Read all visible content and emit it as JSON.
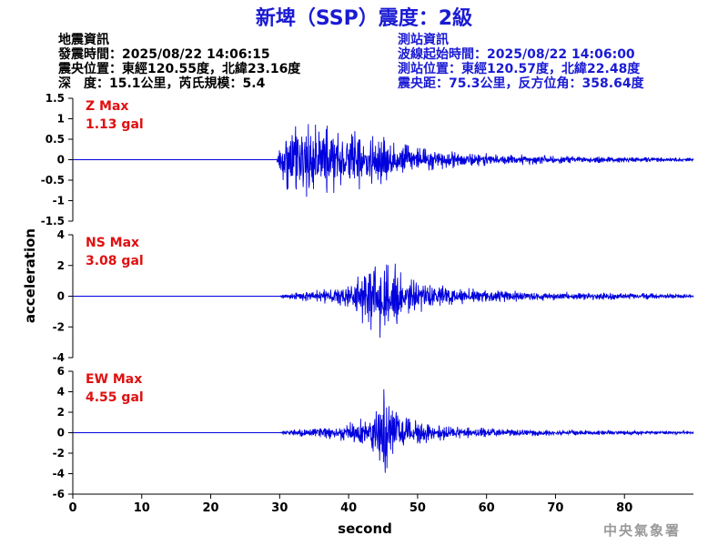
{
  "title": "新埤（SSP）震度：2級",
  "event_info": {
    "heading": "地震資訊",
    "origin_time": "發震時間：2025/08/22 14:06:15",
    "epicenter": "震央位置：東經120.55度，北緯23.16度",
    "depth_magnitude": "深　度：15.1公里，芮氏規模：5.4"
  },
  "station_info": {
    "heading": "測站資訊",
    "wave_start": "波線起始時間：2025/08/22 14:06:00",
    "location": "測站位置：東經120.57度，北緯22.48度",
    "distance": "震央距：75.3公里，反方位角：358.64度"
  },
  "credit": "中央氣象署",
  "colors": {
    "title": "#1a1ad4",
    "trace": "#0000dd",
    "max_label": "#e01010",
    "axis": "#000000"
  },
  "chart_data": {
    "type": "line",
    "xlabel": "second",
    "ylabel": "acceleration",
    "xlim": [
      0,
      90
    ],
    "xticks": [
      0,
      10,
      20,
      30,
      40,
      50,
      60,
      70,
      80
    ],
    "grid": false,
    "panels": [
      {
        "component": "Z",
        "max_label": "Z Max",
        "max_value_label": "1.13 gal",
        "max_gal": 1.13,
        "ylim": [
          -1.5,
          1.5
        ],
        "yticks": [
          -1.5,
          -1,
          -0.5,
          0,
          0.5,
          1,
          1.5
        ],
        "envelope": [
          [
            0,
            0
          ],
          [
            29.5,
            0
          ],
          [
            30,
            0.4
          ],
          [
            31,
            0.85
          ],
          [
            33,
            1.0
          ],
          [
            35,
            0.9
          ],
          [
            38,
            0.85
          ],
          [
            40,
            0.8
          ],
          [
            42,
            0.7
          ],
          [
            44,
            0.65
          ],
          [
            46,
            0.5
          ],
          [
            48,
            0.4
          ],
          [
            50,
            0.3
          ],
          [
            55,
            0.22
          ],
          [
            60,
            0.16
          ],
          [
            70,
            0.1
          ],
          [
            80,
            0.07
          ],
          [
            90,
            0.05
          ]
        ]
      },
      {
        "component": "NS",
        "max_label": "NS Max",
        "max_value_label": "3.08 gal",
        "max_gal": 3.08,
        "ylim": [
          -4,
          4
        ],
        "yticks": [
          -4,
          -2,
          0,
          2,
          4
        ],
        "envelope": [
          [
            0,
            0
          ],
          [
            30,
            0
          ],
          [
            30.5,
            0.15
          ],
          [
            33,
            0.3
          ],
          [
            36,
            0.45
          ],
          [
            39,
            0.8
          ],
          [
            41,
            1.3
          ],
          [
            43,
            2.3
          ],
          [
            44.5,
            3.0
          ],
          [
            46,
            2.4
          ],
          [
            48,
            1.7
          ],
          [
            50,
            1.2
          ],
          [
            53,
            0.8
          ],
          [
            57,
            0.55
          ],
          [
            62,
            0.4
          ],
          [
            70,
            0.3
          ],
          [
            80,
            0.22
          ],
          [
            90,
            0.15
          ]
        ]
      },
      {
        "component": "EW",
        "max_label": "EW Max",
        "max_value_label": "4.55 gal",
        "max_gal": 4.55,
        "ylim": [
          -6,
          6
        ],
        "yticks": [
          -6,
          -4,
          -2,
          0,
          2,
          4,
          6
        ],
        "envelope": [
          [
            0,
            0
          ],
          [
            30,
            0
          ],
          [
            30.5,
            0.2
          ],
          [
            33,
            0.4
          ],
          [
            36,
            0.55
          ],
          [
            39,
            0.8
          ],
          [
            41,
            1.2
          ],
          [
            43,
            2.0
          ],
          [
            44.5,
            3.0
          ],
          [
            45.2,
            4.55
          ],
          [
            46,
            2.4
          ],
          [
            48,
            1.6
          ],
          [
            50,
            1.2
          ],
          [
            53,
            0.8
          ],
          [
            57,
            0.55
          ],
          [
            62,
            0.4
          ],
          [
            70,
            0.3
          ],
          [
            80,
            0.22
          ],
          [
            90,
            0.18
          ]
        ]
      }
    ]
  }
}
